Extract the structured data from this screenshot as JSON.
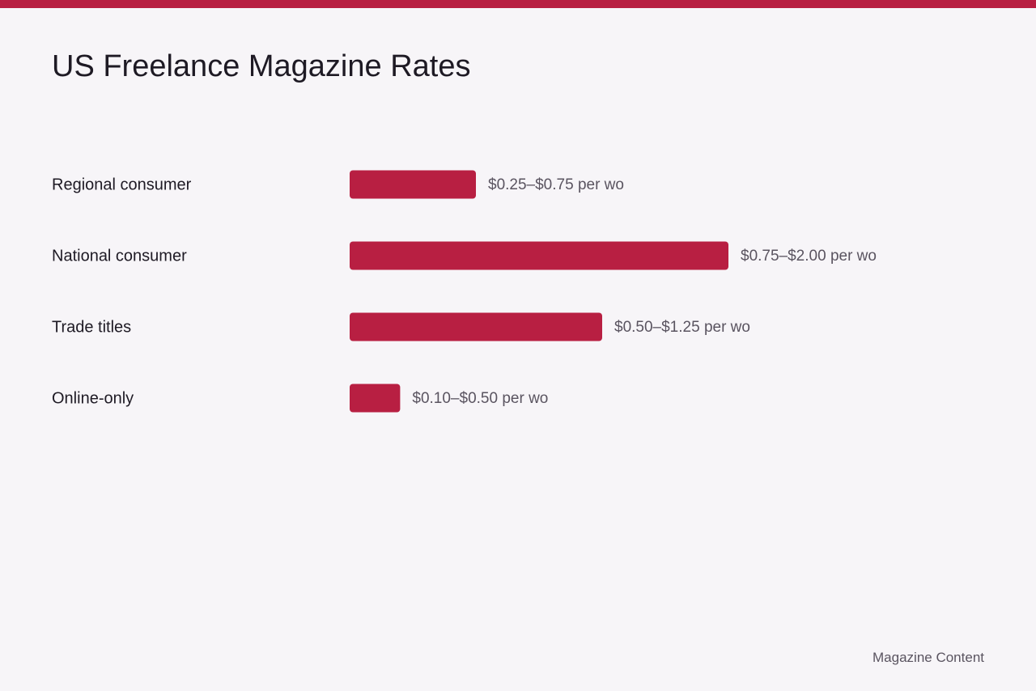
{
  "chart_data": {
    "type": "bar",
    "orientation": "horizontal",
    "title": "US Freelance Magazine Rates",
    "categories": [
      "Regional consumer",
      "National consumer",
      "Trade titles",
      "Online-only"
    ],
    "values": [
      0.25,
      0.75,
      0.5,
      0.1
    ],
    "value_labels": [
      "$0.25–$0.75 per wo",
      "$0.75–$2.00 per wo",
      "$0.50–$1.25 per wo",
      "$0.10–$0.50 per wo"
    ],
    "color": "#b81f42",
    "xlim": [
      0,
      0.75
    ],
    "footer": "Magazine Content"
  }
}
